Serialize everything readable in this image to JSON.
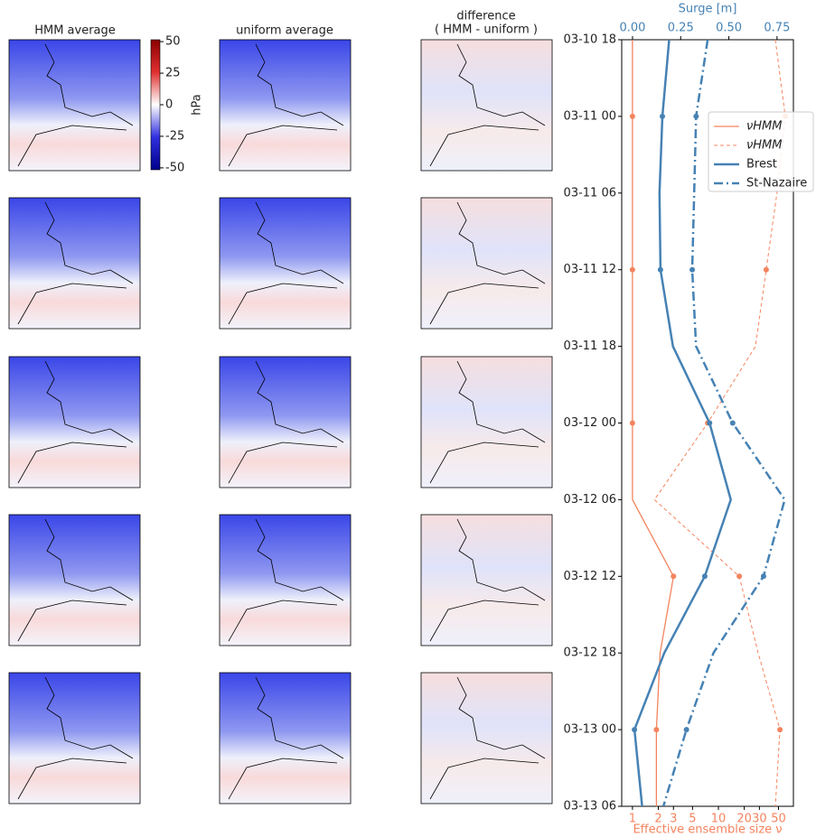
{
  "maps": {
    "column_titles": [
      "HMM average",
      "uniform average"
    ],
    "difference_title": [
      "difference",
      "( HMM - uniform )"
    ]
  },
  "colorbar": {
    "label": "hPa",
    "lim": [
      -51.5,
      51.5
    ],
    "ticks": [
      50,
      25,
      0,
      -25,
      -50
    ]
  },
  "chart_data": {
    "type": "line",
    "xlabel": "Surge [m]",
    "xlim": [
      -0.056,
      0.835
    ],
    "xticks": [
      {
        "value": 0,
        "label": "0.00"
      },
      {
        "value": 0.25,
        "label": "0.25"
      },
      {
        "value": 0.5,
        "label": "0.50"
      },
      {
        "value": 0.75,
        "label": "0.75"
      }
    ],
    "x2label": "Effective ensemble size ν",
    "x2scale": "log",
    "x2lim": [
      0.75,
      74.6
    ],
    "x2ticks": [
      1,
      2,
      3,
      5,
      10,
      20,
      30,
      50
    ],
    "y": [
      0,
      6,
      12,
      18,
      24,
      30,
      36,
      42,
      48,
      54,
      60
    ],
    "ylim": [
      0,
      60
    ],
    "yticks": [
      {
        "value": 0,
        "label": "03-10 18"
      },
      {
        "value": 6,
        "label": "03-11 00"
      },
      {
        "value": 12,
        "label": "03-11 06"
      },
      {
        "value": 18,
        "label": "03-11 12"
      },
      {
        "value": 24,
        "label": "03-11 18"
      },
      {
        "value": 30,
        "label": "03-12 00"
      },
      {
        "value": 36,
        "label": "03-12 06"
      },
      {
        "value": 42,
        "label": "03-12 12"
      },
      {
        "value": 48,
        "label": "03-12 18"
      },
      {
        "value": 54,
        "label": "03-13 00"
      },
      {
        "value": 60,
        "label": "03-13 06"
      }
    ],
    "series": [
      {
        "name": "νHMM",
        "color": "#f4845f",
        "axis": "x2",
        "dash": "solid",
        "width": 1.3,
        "values": [
          1,
          1,
          1,
          1,
          1,
          1,
          1,
          3.0,
          2.1,
          1.9,
          1.9
        ]
      },
      {
        "name": "νHMM",
        "color": "#f4845f",
        "axis": "x2",
        "dash": "dashed",
        "width": 1,
        "values": [
          46,
          60,
          48,
          36,
          27,
          7.5,
          1.8,
          17.5,
          29,
          52,
          46
        ]
      },
      {
        "name": "Brest",
        "color": "#4682b4",
        "axis": "x",
        "dash": "solid",
        "width": 2.5,
        "values": [
          0.19,
          0.155,
          0.14,
          0.145,
          0.21,
          0.4,
          0.51,
          0.375,
          0.165,
          0.01,
          0.05
        ]
      },
      {
        "name": "St-Nazaire",
        "color": "#4682b4",
        "axis": "x",
        "dash": "dashdot",
        "width": 2.5,
        "values": [
          0.39,
          0.33,
          0.32,
          0.31,
          0.33,
          0.52,
          0.79,
          0.68,
          0.42,
          0.28,
          0.16
        ]
      }
    ]
  }
}
